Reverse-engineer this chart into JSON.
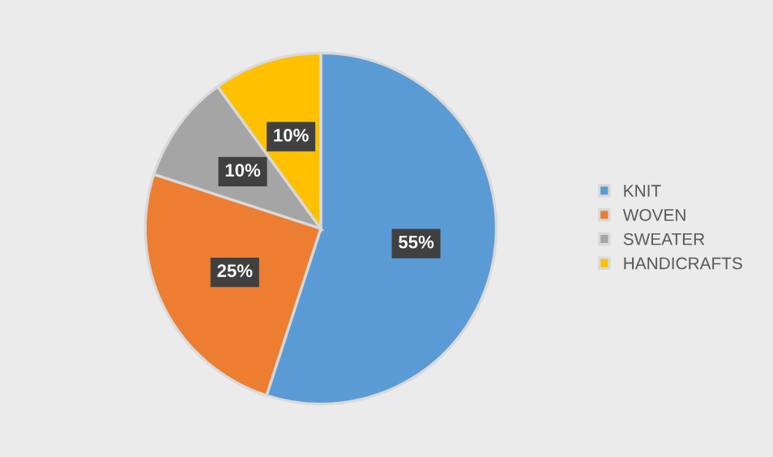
{
  "chart_data": {
    "type": "pie",
    "categories": [
      "KNIT",
      "WOVEN",
      "SWEATER",
      "HANDICRAFTS"
    ],
    "values": [
      55,
      25,
      10,
      10
    ],
    "colors": [
      "#5b9bd5",
      "#ed7d31",
      "#a5a5a5",
      "#ffc000"
    ],
    "value_labels": [
      "55%",
      "25%",
      "10%",
      "10%"
    ],
    "legend": "right"
  }
}
